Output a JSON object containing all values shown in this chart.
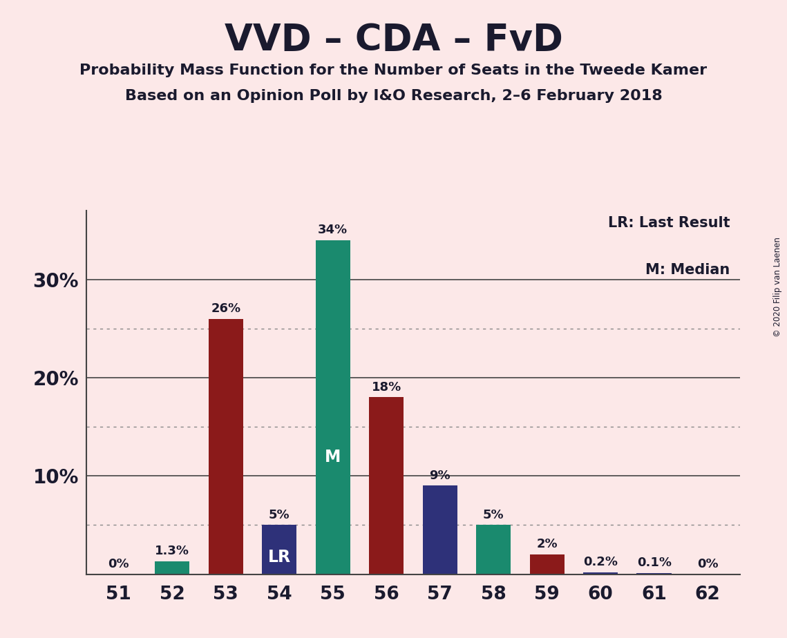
{
  "title": "VVD – CDA – FvD",
  "subtitle1": "Probability Mass Function for the Number of Seats in the Tweede Kamer",
  "subtitle2": "Based on an Opinion Poll by I&O Research, 2–6 February 2018",
  "copyright": "© 2020 Filip van Laenen",
  "legend_line1": "LR: Last Result",
  "legend_line2": "M: Median",
  "seats": [
    51,
    52,
    53,
    54,
    55,
    56,
    57,
    58,
    59,
    60,
    61,
    62
  ],
  "values": [
    0.0,
    1.3,
    26.0,
    5.0,
    34.0,
    18.0,
    9.0,
    5.0,
    2.0,
    0.2,
    0.1,
    0.0
  ],
  "colors": [
    "#1a8a6e",
    "#1a8a6e",
    "#8b1a1a",
    "#2e3179",
    "#1a8a6e",
    "#8b1a1a",
    "#2e3179",
    "#1a8a6e",
    "#8b1a1a",
    "#2e3179",
    "#2e3179",
    "#1a8a6e"
  ],
  "bar_labels": [
    "0%",
    "1.3%",
    "26%",
    "5%",
    "34%",
    "18%",
    "9%",
    "5%",
    "2%",
    "0.2%",
    "0.1%",
    "0%"
  ],
  "special_labels": {
    "4": "M",
    "3": "LR"
  },
  "special_label_colors": {
    "4": "white",
    "3": "white"
  },
  "background_color": "#fce8e8",
  "ylim": [
    0,
    37
  ],
  "solid_grid": [
    30
  ],
  "dotted_grid": [
    5,
    15,
    25
  ],
  "ytick_positions": [
    0,
    10,
    20,
    30
  ],
  "ytick_labels": [
    "",
    "10%",
    "20%",
    "30%"
  ]
}
